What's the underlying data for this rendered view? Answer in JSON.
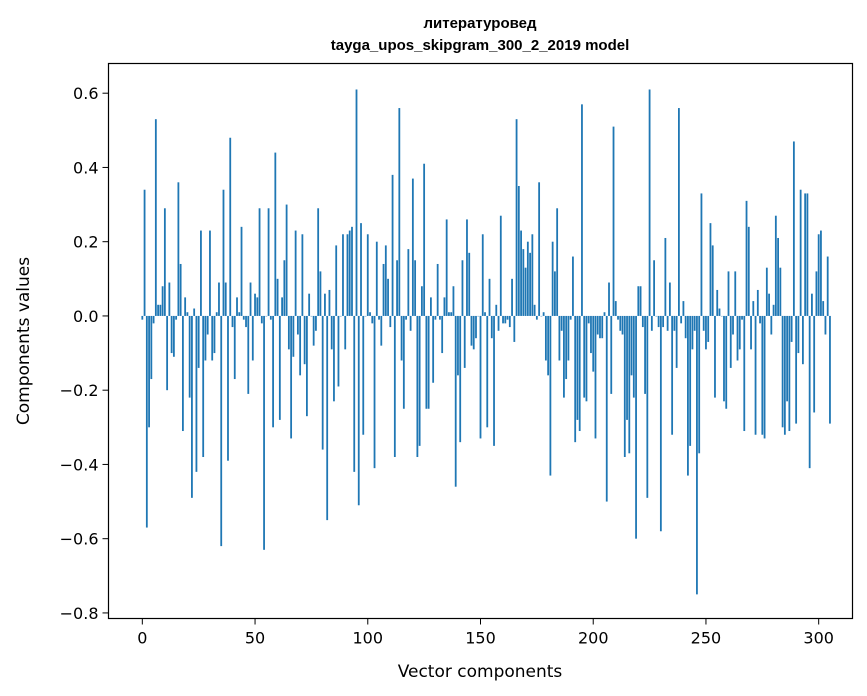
{
  "chart_data": {
    "type": "bar",
    "title": "литературовед",
    "subtitle": "tayga_upos_skipgram_300_2_2019 model",
    "xlabel": "Vector components",
    "ylabel": "Components values",
    "xlim": [
      -15,
      315
    ],
    "ylim": [
      -0.815,
      0.68
    ],
    "xticks": [
      0,
      50,
      100,
      150,
      200,
      250,
      300
    ],
    "xtick_labels": [
      "0",
      "50",
      "100",
      "150",
      "200",
      "250",
      "300"
    ],
    "yticks": [
      -0.8,
      -0.6,
      -0.4,
      -0.2,
      0.0,
      0.2,
      0.4,
      0.6
    ],
    "ytick_labels": [
      "−0.8",
      "−0.6",
      "−0.4",
      "−0.2",
      "0.0",
      "0.2",
      "0.4",
      "0.6"
    ],
    "grid": false,
    "bar_color": "#1f77b4",
    "values": [
      -0.01,
      0.34,
      -0.57,
      -0.3,
      -0.17,
      -0.02,
      0.53,
      0.03,
      0.03,
      0.08,
      0.29,
      -0.2,
      0.09,
      -0.1,
      -0.11,
      -0.01,
      0.36,
      0.14,
      -0.31,
      0.05,
      0.01,
      -0.22,
      -0.49,
      0.02,
      -0.42,
      -0.14,
      0.23,
      -0.38,
      -0.12,
      -0.05,
      0.23,
      -0.12,
      -0.1,
      0.01,
      0.09,
      -0.62,
      0.34,
      0.09,
      -0.39,
      0.48,
      -0.03,
      -0.17,
      0.05,
      0.01,
      0.24,
      -0.01,
      -0.03,
      -0.21,
      0.09,
      -0.12,
      0.06,
      0.05,
      0.29,
      -0.02,
      -0.63,
      0.0,
      0.29,
      -0.01,
      -0.3,
      0.44,
      0.1,
      -0.28,
      0.05,
      0.15,
      0.3,
      -0.09,
      -0.33,
      -0.11,
      0.23,
      -0.05,
      -0.16,
      0.22,
      -0.13,
      -0.27,
      0.06,
      0.0,
      -0.08,
      -0.04,
      0.29,
      0.12,
      -0.36,
      0.06,
      -0.55,
      0.07,
      -0.09,
      -0.23,
      0.19,
      -0.19,
      0.0,
      0.22,
      -0.09,
      0.22,
      0.23,
      0.24,
      -0.42,
      0.61,
      -0.51,
      0.25,
      -0.32,
      0.0,
      0.22,
      0.01,
      -0.02,
      -0.41,
      0.2,
      -0.01,
      -0.08,
      0.14,
      0.19,
      0.1,
      -0.03,
      0.38,
      -0.38,
      0.15,
      0.56,
      -0.12,
      -0.25,
      -0.01,
      0.18,
      -0.04,
      0.37,
      0.15,
      -0.38,
      -0.35,
      0.08,
      0.41,
      -0.25,
      -0.25,
      0.05,
      -0.18,
      -0.01,
      0.14,
      -0.01,
      -0.1,
      0.05,
      0.26,
      0.01,
      0.01,
      0.08,
      -0.46,
      -0.16,
      -0.34,
      0.15,
      -0.14,
      0.26,
      0.17,
      -0.08,
      -0.09,
      -0.06,
      0.0,
      -0.33,
      0.22,
      0.01,
      -0.3,
      0.1,
      -0.06,
      -0.35,
      0.03,
      -0.04,
      0.27,
      -0.02,
      -0.02,
      -0.01,
      -0.03,
      0.1,
      -0.07,
      0.53,
      0.35,
      0.23,
      0.18,
      0.13,
      0.2,
      0.17,
      0.22,
      0.03,
      -0.01,
      0.36,
      0.0,
      0.01,
      -0.12,
      -0.16,
      -0.43,
      0.2,
      0.12,
      0.29,
      -0.12,
      -0.04,
      -0.22,
      -0.17,
      -0.12,
      -0.01,
      0.16,
      -0.34,
      -0.28,
      -0.31,
      0.57,
      -0.22,
      -0.23,
      -0.02,
      -0.1,
      -0.15,
      -0.33,
      -0.05,
      -0.06,
      -0.06,
      0.01,
      -0.5,
      0.09,
      -0.21,
      0.51,
      0.04,
      -0.01,
      -0.04,
      -0.05,
      -0.38,
      -0.28,
      -0.37,
      -0.16,
      -0.22,
      -0.6,
      0.08,
      0.08,
      -0.03,
      -0.21,
      -0.49,
      0.61,
      -0.04,
      0.15,
      0.0,
      -0.03,
      -0.58,
      -0.03,
      0.21,
      -0.04,
      0.09,
      -0.32,
      -0.04,
      -0.14,
      0.56,
      -0.02,
      0.04,
      -0.06,
      -0.43,
      -0.35,
      -0.09,
      -0.04,
      -0.75,
      -0.37,
      0.33,
      -0.04,
      -0.09,
      -0.07,
      0.25,
      0.19,
      -0.22,
      0.07,
      0.02,
      0.0,
      -0.23,
      -0.25,
      0.12,
      -0.14,
      -0.05,
      0.12,
      -0.12,
      -0.09,
      -0.01,
      -0.31,
      0.31,
      0.24,
      -0.09,
      0.04,
      -0.32,
      0.07,
      -0.02,
      -0.32,
      -0.33,
      0.13,
      0.06,
      -0.05,
      0.03,
      0.27,
      0.21,
      0.13,
      -0.3,
      -0.32,
      -0.23,
      -0.31,
      -0.07,
      0.47,
      -0.29,
      -0.1,
      0.34,
      -0.13,
      0.33,
      0.33,
      -0.41,
      0.06,
      -0.26,
      0.12,
      0.22,
      0.23,
      0.04,
      -0.05,
      0.16,
      -0.29
    ]
  }
}
